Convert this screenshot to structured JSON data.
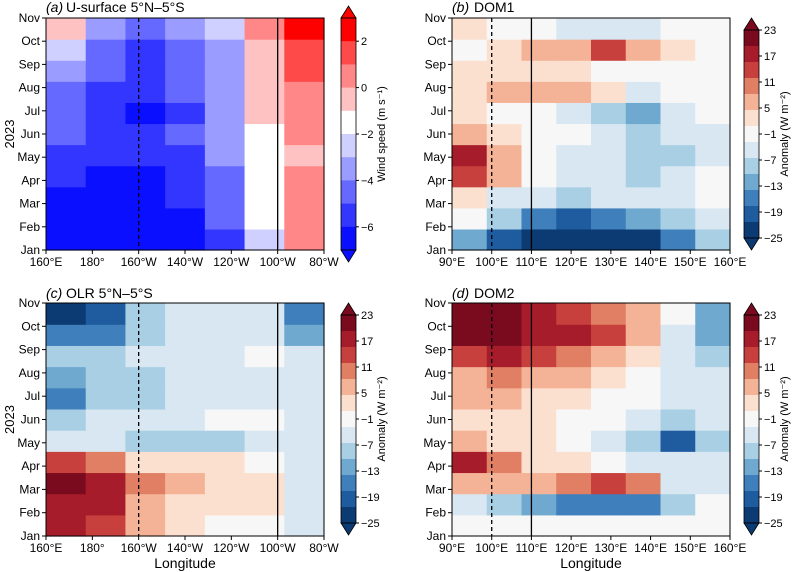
{
  "panels": [
    {
      "letter": "(a)",
      "title": "U-surface 5°N–5°S",
      "xticks": [
        "160°E",
        "180°",
        "160°W",
        "140°W",
        "120°W",
        "100°W",
        "80°W"
      ],
      "dashed_tick_index": 2,
      "solid_tick_index": 5,
      "ylabel": "2023",
      "xlabel": "",
      "colorbar": {
        "label": "Wind speed (m s⁻¹)",
        "ticks": [
          "2",
          "0",
          "−2",
          "−4",
          "−6"
        ],
        "colors": [
          "#fd0000",
          "#ff4a4a",
          "#ff8787",
          "#ffc2c2",
          "#ffffff",
          "#cfd0ff",
          "#9a9cff",
          "#6669ff",
          "#3236ff",
          "#0a10ff"
        ]
      }
    },
    {
      "letter": "(b)",
      "title": "DOM1",
      "xticks": [
        "90°E",
        "100°E",
        "110°E",
        "120°E",
        "130°E",
        "140°E",
        "150°E",
        "160°E"
      ],
      "dashed_tick_index": 1,
      "solid_tick_index": 2,
      "ylabel": "",
      "xlabel": "",
      "colorbar": {
        "label": "Anomaly (W m⁻²)",
        "ticks": [
          "23",
          "17",
          "11",
          "5",
          "−1",
          "−7",
          "−13",
          "−19",
          "−25"
        ],
        "colors": [
          "#7a0b1f",
          "#a71c2a",
          "#c8403d",
          "#e07f64",
          "#f4b396",
          "#fbe0d0",
          "#f7f7f7",
          "#d8e7f1",
          "#a8cfe4",
          "#6fa9d0",
          "#3e7fbc",
          "#1f5b9f",
          "#0c3a72"
        ]
      }
    },
    {
      "letter": "(c)",
      "title": "OLR 5°N–5°S",
      "xticks": [
        "160°E",
        "180°",
        "160°W",
        "140°W",
        "120°W",
        "100°W",
        "80°W"
      ],
      "dashed_tick_index": 2,
      "solid_tick_index": 5,
      "ylabel": "2023",
      "xlabel": "Longitude",
      "colorbar": {
        "label": "Anomaly (W m⁻²)",
        "ticks": [
          "23",
          "17",
          "11",
          "5",
          "−1",
          "−7",
          "−13",
          "−19",
          "−25"
        ],
        "colors": [
          "#7a0b1f",
          "#a71c2a",
          "#c8403d",
          "#e07f64",
          "#f4b396",
          "#fbe0d0",
          "#f7f7f7",
          "#d8e7f1",
          "#a8cfe4",
          "#6fa9d0",
          "#3e7fbc",
          "#1f5b9f",
          "#0c3a72"
        ]
      }
    },
    {
      "letter": "(d)",
      "title": "DOM2",
      "xticks": [
        "90°E",
        "100°E",
        "110°E",
        "120°E",
        "130°E",
        "140°E",
        "150°E",
        "160°E"
      ],
      "dashed_tick_index": 1,
      "solid_tick_index": 2,
      "ylabel": "",
      "xlabel": "Longitude",
      "colorbar": {
        "label": "Anomaly (W m⁻²)",
        "ticks": [
          "23",
          "17",
          "11",
          "5",
          "−1",
          "−7",
          "−13",
          "−19",
          "−25"
        ],
        "colors": [
          "#7a0b1f",
          "#a71c2a",
          "#c8403d",
          "#e07f64",
          "#f4b396",
          "#fbe0d0",
          "#f7f7f7",
          "#d8e7f1",
          "#a8cfe4",
          "#6fa9d0",
          "#3e7fbc",
          "#1f5b9f",
          "#0c3a72"
        ]
      }
    }
  ],
  "chart_data": [
    {
      "type": "heatmap",
      "title": "(a) U-surface 5°N–5°S",
      "x": [
        "160°E",
        "180°",
        "160°W",
        "140°W",
        "120°W",
        "100°W",
        "80°W"
      ],
      "y": [
        "Jan",
        "Feb",
        "Mar",
        "Apr",
        "May",
        "Jun",
        "Jul",
        "Aug",
        "Sep",
        "Oct",
        "Nov"
      ],
      "ylabel": "2023",
      "values": [
        [
          -7,
          -7,
          -7,
          -6,
          -5,
          -2,
          1
        ],
        [
          -6,
          -7,
          -7,
          -6,
          -4,
          -1,
          1
        ],
        [
          -6,
          -7,
          -7,
          -5,
          -4,
          -1,
          1
        ],
        [
          -5,
          -6,
          -6,
          -5,
          -4,
          -1,
          1
        ],
        [
          -5,
          -5,
          -5,
          -5,
          -3,
          -1,
          0
        ],
        [
          -4,
          -5,
          -5,
          -4,
          -3,
          -1,
          1
        ],
        [
          -4,
          -5,
          -6,
          -5,
          -3,
          0,
          1
        ],
        [
          -4,
          -5,
          -5,
          -4,
          -3,
          0,
          1
        ],
        [
          -3,
          -4,
          -5,
          -4,
          -3,
          0,
          2
        ],
        [
          -2,
          -4,
          -5,
          -4,
          -3,
          0,
          2
        ],
        [
          0,
          -3,
          -4,
          -3,
          -2,
          1,
          3
        ]
      ],
      "colorbar_label": "Wind speed (m s⁻¹)",
      "colorbar_ticks": [
        2,
        0,
        -2,
        -4,
        -6
      ]
    },
    {
      "type": "heatmap",
      "title": "(b) DOM1",
      "x": [
        "90°E",
        "100°E",
        "110°E",
        "120°E",
        "130°E",
        "140°E",
        "150°E",
        "160°E"
      ],
      "y": [
        "Jan",
        "Feb",
        "Mar",
        "Apr",
        "May",
        "Jun",
        "Jul",
        "Aug",
        "Sep",
        "Oct",
        "Nov"
      ],
      "values": [
        [
          -12,
          -18,
          -22,
          -25,
          -25,
          -22,
          -15,
          -10
        ],
        [
          -2,
          -8,
          -15,
          -18,
          -16,
          -13,
          -8,
          -4
        ],
        [
          2,
          -3,
          -5,
          -7,
          -6,
          -5,
          -3,
          -1
        ],
        [
          14,
          5,
          -2,
          -4,
          -6,
          -8,
          -5,
          -2
        ],
        [
          17,
          8,
          -1,
          -4,
          -6,
          -10,
          -8,
          -3
        ],
        [
          5,
          1,
          -2,
          -2,
          -4,
          -7,
          -6,
          -3
        ],
        [
          1,
          -1,
          0,
          -3,
          -7,
          -12,
          -4,
          -2
        ],
        [
          2,
          6,
          8,
          5,
          4,
          -3,
          -2,
          -1
        ],
        [
          1,
          2,
          3,
          1,
          -1,
          -2,
          -1,
          0
        ],
        [
          0,
          2,
          5,
          8,
          14,
          5,
          2,
          0
        ],
        [
          3,
          0,
          -2,
          -4,
          -5,
          -3,
          -2,
          0
        ]
      ],
      "colorbar_label": "Anomaly (W m⁻²)",
      "colorbar_ticks": [
        23,
        17,
        11,
        5,
        -1,
        -7,
        -13,
        -19,
        -25
      ]
    },
    {
      "type": "heatmap",
      "title": "(c) OLR 5°N–5°S",
      "x": [
        "160°E",
        "180°",
        "160°W",
        "140°W",
        "120°W",
        "100°W",
        "80°W"
      ],
      "y": [
        "Jan",
        "Feb",
        "Mar",
        "Apr",
        "May",
        "Jun",
        "Jul",
        "Aug",
        "Sep",
        "Oct",
        "Nov"
      ],
      "xlabel": "Longitude",
      "ylabel": "2023",
      "values": [
        [
          18,
          14,
          6,
          2,
          0,
          -2,
          -6
        ],
        [
          19,
          16,
          8,
          2,
          2,
          1,
          -5
        ],
        [
          20,
          19,
          10,
          5,
          4,
          2,
          -3
        ],
        [
          12,
          10,
          4,
          1,
          2,
          -1,
          -4
        ],
        [
          -4,
          -6,
          -8,
          -10,
          -8,
          -4,
          -6
        ],
        [
          -8,
          -6,
          -4,
          -3,
          -2,
          -2,
          -4
        ],
        [
          -14,
          -10,
          -7,
          -5,
          -3,
          -3,
          -6
        ],
        [
          -12,
          -10,
          -8,
          -4,
          -3,
          -3,
          -5
        ],
        [
          -10,
          -9,
          -6,
          -4,
          -3,
          -2,
          -6
        ],
        [
          -16,
          -14,
          -8,
          -4,
          -3,
          -4,
          -12
        ],
        [
          -22,
          -18,
          -10,
          -5,
          -4,
          -6,
          -14
        ]
      ],
      "colorbar_label": "Anomaly (W m⁻²)",
      "colorbar_ticks": [
        23,
        17,
        11,
        5,
        -1,
        -7,
        -13,
        -19,
        -25
      ]
    },
    {
      "type": "heatmap",
      "title": "(d) DOM2",
      "x": [
        "90°E",
        "100°E",
        "110°E",
        "120°E",
        "130°E",
        "140°E",
        "150°E",
        "160°E"
      ],
      "y": [
        "Jan",
        "Feb",
        "Mar",
        "Apr",
        "May",
        "Jun",
        "Jul",
        "Aug",
        "Sep",
        "Oct",
        "Nov"
      ],
      "xlabel": "Longitude",
      "values": [
        [
          0,
          0,
          -2,
          -2,
          -1,
          0,
          0,
          0
        ],
        [
          -3,
          -8,
          -12,
          -14,
          -15,
          -16,
          -8,
          -2
        ],
        [
          6,
          8,
          8,
          10,
          12,
          10,
          -4,
          -6
        ],
        [
          16,
          10,
          4,
          2,
          -2,
          -4,
          -6,
          -4
        ],
        [
          6,
          4,
          2,
          -2,
          -4,
          -8,
          -20,
          -10
        ],
        [
          4,
          4,
          2,
          0,
          -2,
          -6,
          -8,
          -4
        ],
        [
          6,
          6,
          4,
          2,
          0,
          -2,
          -4,
          -4
        ],
        [
          8,
          10,
          8,
          6,
          2,
          -2,
          -6,
          -6
        ],
        [
          14,
          16,
          12,
          10,
          6,
          2,
          -4,
          -10
        ],
        [
          20,
          22,
          18,
          16,
          12,
          6,
          -4,
          -12
        ],
        [
          20,
          22,
          18,
          14,
          10,
          5,
          -2,
          -12
        ]
      ],
      "colorbar_label": "Anomaly (W m⁻²)",
      "colorbar_ticks": [
        23,
        17,
        11,
        5,
        -1,
        -7,
        -13,
        -19,
        -25
      ]
    }
  ]
}
